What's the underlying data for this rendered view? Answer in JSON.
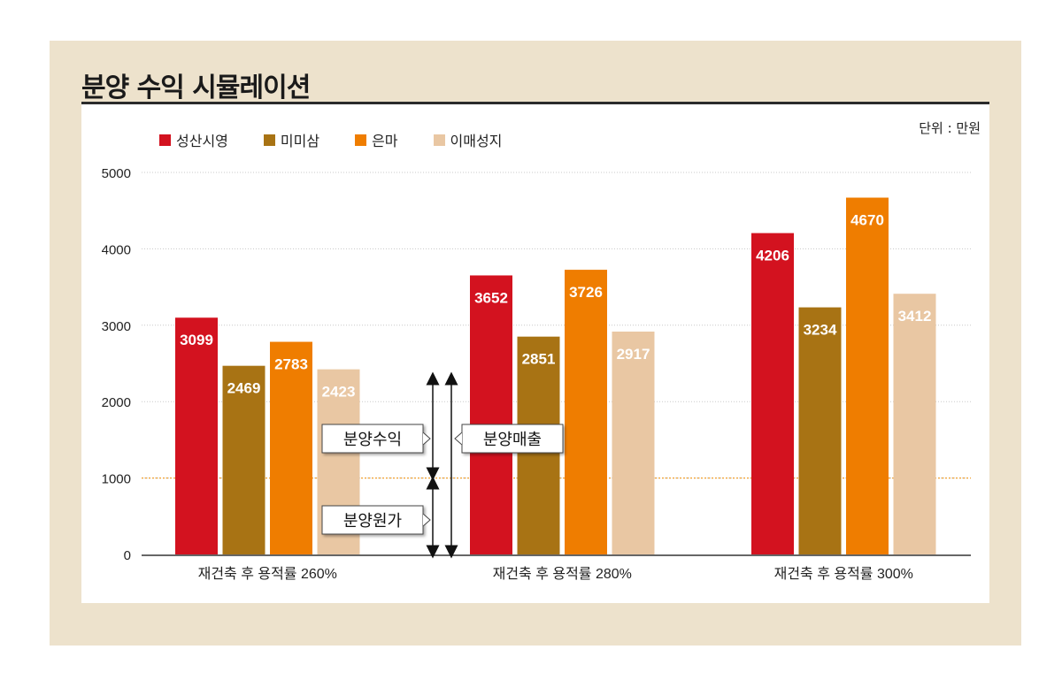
{
  "title": "분양 수익 시뮬레이션",
  "unit": "단위 : 만원",
  "legend": [
    {
      "name": "성산시영",
      "color": "#d3121f"
    },
    {
      "name": "미미삼",
      "color": "#a87314"
    },
    {
      "name": "은마",
      "color": "#ef7d00"
    },
    {
      "name": "이매성지",
      "color": "#e9c7a3"
    }
  ],
  "annotations": {
    "profit": "분양수익",
    "revenue": "분양매출",
    "cost": "분양원가"
  },
  "chart_data": {
    "type": "bar",
    "title": "분양 수익 시뮬레이션",
    "xlabel": "",
    "ylabel": "",
    "unit": "단위 : 만원",
    "ylim": [
      0,
      5000
    ],
    "yticks": [
      0,
      1000,
      2000,
      3000,
      4000,
      5000
    ],
    "grid": true,
    "legend_position": "top-left",
    "categories": [
      "재건축 후 용적률 260%",
      "재건축 후 용적률 280%",
      "재건축 후 용적률 300%"
    ],
    "series": [
      {
        "name": "성산시영",
        "color": "#d3121f",
        "values": [
          3099,
          3652,
          4206
        ]
      },
      {
        "name": "미미삼",
        "color": "#a87314",
        "values": [
          2469,
          2851,
          3234
        ]
      },
      {
        "name": "은마",
        "color": "#ef7d00",
        "values": [
          2783,
          3726,
          4670
        ]
      },
      {
        "name": "이매성지",
        "color": "#e9c7a3",
        "values": [
          2423,
          2917,
          3412
        ]
      }
    ],
    "reference_line": {
      "value": 1000,
      "color": "#f0a030"
    }
  }
}
